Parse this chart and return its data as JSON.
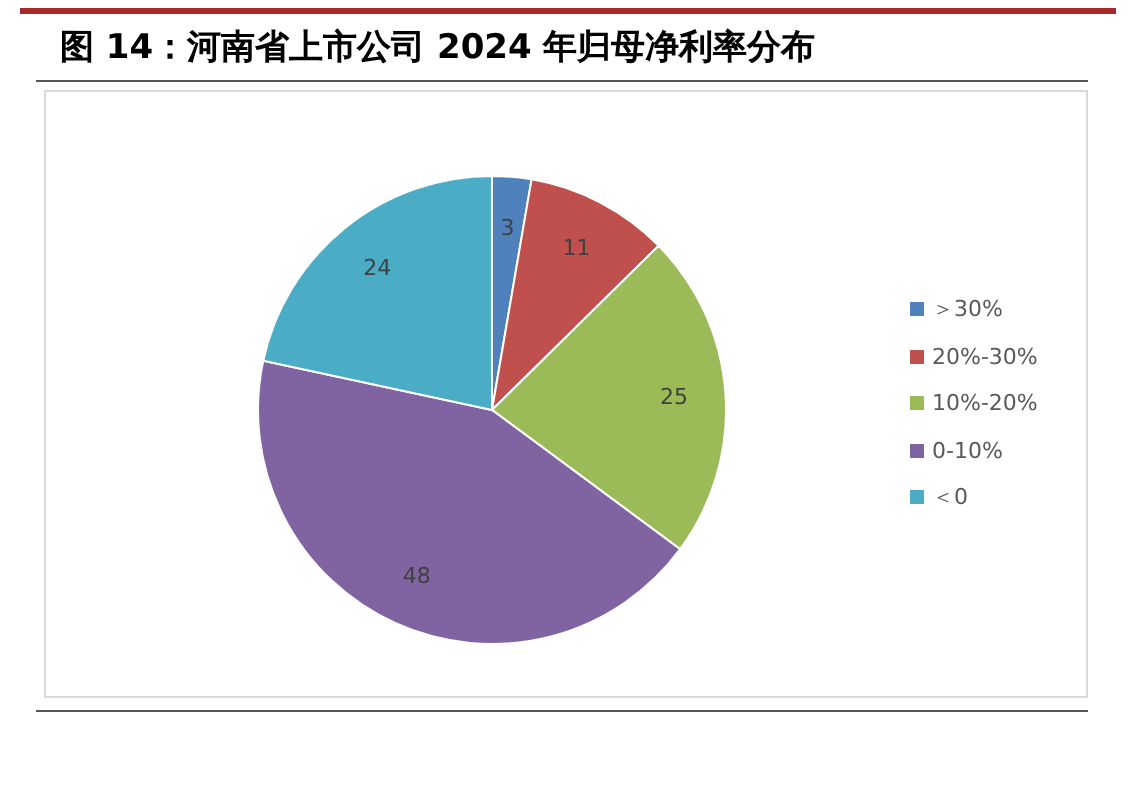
{
  "chart_data": {
    "type": "pie",
    "title": "图 14：河南省上市公司 2024 年归母净利率分布",
    "categories": [
      "＞30%",
      "20%-30%",
      "10%-20%",
      "0-10%",
      "＜0"
    ],
    "values": [
      3,
      11,
      25,
      48,
      24
    ],
    "colors": [
      "#4f81bd",
      "#c0504d",
      "#9bbb59",
      "#8064a2",
      "#4bacc6"
    ],
    "data_labels": true,
    "legend": "right"
  }
}
